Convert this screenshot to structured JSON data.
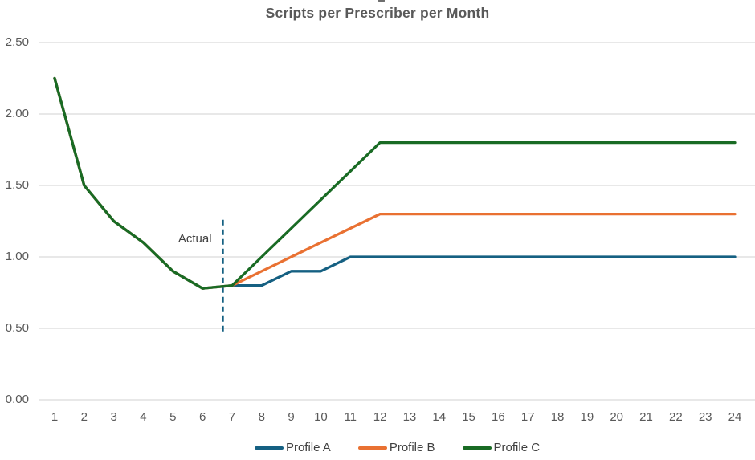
{
  "page": {
    "background": "#ffffff"
  },
  "chart_data": {
    "type": "line",
    "title": "Scripts per Prescriber per Month",
    "xlabel": "",
    "ylabel": "",
    "x": [
      1,
      2,
      3,
      4,
      5,
      6,
      7,
      8,
      9,
      10,
      11,
      12,
      13,
      14,
      15,
      16,
      17,
      18,
      19,
      20,
      21,
      22,
      23,
      24
    ],
    "y_ticks": [
      "0.00",
      "0.50",
      "1.00",
      "1.50",
      "2.00",
      "2.50"
    ],
    "ylim": [
      0,
      2.5
    ],
    "grid": "horizontal",
    "gridline_color": "#D9D9D9",
    "axis_text_color": "#595959",
    "legend_position": "bottom",
    "annotation": {
      "label": "Actual",
      "x": 6.69,
      "y_from": 0.47,
      "y_to": 1.26,
      "style": "vertical-dashed",
      "color": "#156082"
    },
    "series": [
      {
        "name": "Profile A",
        "color": "#156082",
        "values": [
          2.25,
          1.5,
          1.25,
          1.1,
          0.9,
          0.78,
          0.8,
          0.8,
          0.9,
          0.9,
          1.0,
          1.0,
          1.0,
          1.0,
          1.0,
          1.0,
          1.0,
          1.0,
          1.0,
          1.0,
          1.0,
          1.0,
          1.0,
          1.0
        ]
      },
      {
        "name": "Profile B",
        "color": "#E97132",
        "values": [
          2.25,
          1.5,
          1.25,
          1.1,
          0.9,
          0.78,
          0.8,
          0.9,
          1.0,
          1.1,
          1.2,
          1.3,
          1.3,
          1.3,
          1.3,
          1.3,
          1.3,
          1.3,
          1.3,
          1.3,
          1.3,
          1.3,
          1.3,
          1.3
        ]
      },
      {
        "name": "Profile C",
        "color": "#196B24",
        "values": [
          2.25,
          1.5,
          1.25,
          1.1,
          0.9,
          0.78,
          0.8,
          1.0,
          1.2,
          1.4,
          1.6,
          1.8,
          1.8,
          1.8,
          1.8,
          1.8,
          1.8,
          1.8,
          1.8,
          1.8,
          1.8,
          1.8,
          1.8,
          1.8
        ]
      }
    ]
  }
}
